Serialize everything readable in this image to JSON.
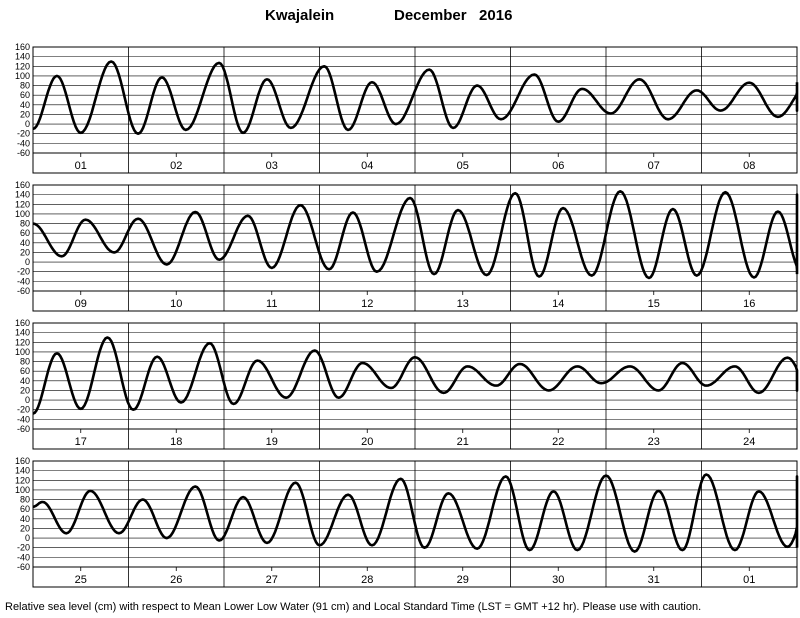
{
  "chart_data": {
    "type": "line",
    "title": "Kwajalein",
    "subtitle": "December   2016",
    "caption": "Relative sea level (cm) with respect to Mean Lower Low Water (91 cm) and Local Standard Time (LST = GMT +12 hr). Please use with caution.",
    "ylim": [
      -60,
      160
    ],
    "yticks": [
      -60,
      -40,
      -20,
      0,
      20,
      40,
      60,
      80,
      100,
      120,
      140,
      160
    ],
    "grid": true,
    "panels": [
      {
        "days": [
          "01",
          "02",
          "03",
          "04",
          "05",
          "06",
          "07",
          "08"
        ],
        "series": {
          "name": "",
          "extrema": [
            [
              0.0,
              -10
            ],
            [
              0.25,
              100
            ],
            [
              0.5,
              -18
            ],
            [
              0.82,
              130
            ],
            [
              1.1,
              -20
            ],
            [
              1.35,
              97
            ],
            [
              1.6,
              -12
            ],
            [
              1.95,
              127
            ],
            [
              2.2,
              -18
            ],
            [
              2.45,
              93
            ],
            [
              2.7,
              -8
            ],
            [
              3.05,
              120
            ],
            [
              3.3,
              -12
            ],
            [
              3.55,
              87
            ],
            [
              3.8,
              0
            ],
            [
              4.15,
              113
            ],
            [
              4.4,
              -8
            ],
            [
              4.65,
              80
            ],
            [
              4.9,
              10
            ],
            [
              5.25,
              103
            ],
            [
              5.5,
              5
            ],
            [
              5.75,
              73
            ],
            [
              6.05,
              22
            ],
            [
              6.35,
              93
            ],
            [
              6.65,
              10
            ],
            [
              6.95,
              70
            ],
            [
              7.2,
              28
            ],
            [
              7.5,
              86
            ],
            [
              7.8,
              15
            ],
            [
              8.1,
              77
            ],
            [
              8.4,
              28
            ],
            [
              8.7,
              87
            ]
          ]
        }
      },
      {
        "days": [
          "09",
          "10",
          "11",
          "12",
          "13",
          "14",
          "15",
          "16"
        ],
        "series": {
          "name": "",
          "extrema": [
            [
              0.0,
              80
            ],
            [
              0.3,
              12
            ],
            [
              0.55,
              88
            ],
            [
              0.85,
              20
            ],
            [
              1.1,
              90
            ],
            [
              1.4,
              -5
            ],
            [
              1.7,
              104
            ],
            [
              1.95,
              5
            ],
            [
              2.25,
              96
            ],
            [
              2.5,
              -12
            ],
            [
              2.8,
              118
            ],
            [
              3.1,
              -15
            ],
            [
              3.35,
              103
            ],
            [
              3.6,
              -20
            ],
            [
              3.95,
              133
            ],
            [
              4.2,
              -25
            ],
            [
              4.45,
              108
            ],
            [
              4.75,
              -27
            ],
            [
              5.05,
              143
            ],
            [
              5.3,
              -30
            ],
            [
              5.55,
              112
            ],
            [
              5.85,
              -28
            ],
            [
              6.15,
              147
            ],
            [
              6.45,
              -33
            ],
            [
              6.7,
              110
            ],
            [
              6.95,
              -28
            ],
            [
              7.25,
              145
            ],
            [
              7.55,
              -32
            ],
            [
              7.8,
              105
            ],
            [
              8.05,
              -22
            ],
            [
              8.3,
              140
            ],
            [
              8.55,
              -25
            ]
          ]
        }
      },
      {
        "days": [
          "17",
          "18",
          "19",
          "20",
          "21",
          "22",
          "23",
          "24"
        ],
        "series": {
          "name": "",
          "extrema": [
            [
              0.0,
              -28
            ],
            [
              0.25,
              97
            ],
            [
              0.5,
              -18
            ],
            [
              0.78,
              130
            ],
            [
              1.05,
              -20
            ],
            [
              1.3,
              90
            ],
            [
              1.55,
              -5
            ],
            [
              1.85,
              118
            ],
            [
              2.1,
              -8
            ],
            [
              2.35,
              82
            ],
            [
              2.65,
              5
            ],
            [
              2.95,
              103
            ],
            [
              3.2,
              5
            ],
            [
              3.45,
              77
            ],
            [
              3.75,
              25
            ],
            [
              4.0,
              89
            ],
            [
              4.3,
              15
            ],
            [
              4.55,
              70
            ],
            [
              4.85,
              30
            ],
            [
              5.1,
              75
            ],
            [
              5.4,
              20
            ],
            [
              5.7,
              70
            ],
            [
              5.95,
              35
            ],
            [
              6.25,
              70
            ],
            [
              6.55,
              20
            ],
            [
              6.8,
              77
            ],
            [
              7.05,
              30
            ],
            [
              7.35,
              70
            ],
            [
              7.6,
              15
            ],
            [
              7.9,
              88
            ],
            [
              8.15,
              20
            ],
            [
              8.4,
              60
            ]
          ]
        }
      },
      {
        "days": [
          "25",
          "26",
          "27",
          "28",
          "29",
          "30",
          "31",
          "01"
        ],
        "series": {
          "name": "",
          "extrema": [
            [
              0.0,
              65
            ],
            [
              0.1,
              75
            ],
            [
              0.35,
              10
            ],
            [
              0.6,
              98
            ],
            [
              0.9,
              10
            ],
            [
              1.15,
              80
            ],
            [
              1.4,
              0
            ],
            [
              1.7,
              107
            ],
            [
              1.95,
              -5
            ],
            [
              2.2,
              85
            ],
            [
              2.45,
              -10
            ],
            [
              2.75,
              115
            ],
            [
              3.0,
              -15
            ],
            [
              3.3,
              90
            ],
            [
              3.55,
              -15
            ],
            [
              3.85,
              123
            ],
            [
              4.1,
              -20
            ],
            [
              4.35,
              93
            ],
            [
              4.65,
              -22
            ],
            [
              4.95,
              128
            ],
            [
              5.2,
              -25
            ],
            [
              5.45,
              97
            ],
            [
              5.7,
              -25
            ],
            [
              6.0,
              130
            ],
            [
              6.3,
              -28
            ],
            [
              6.55,
              98
            ],
            [
              6.8,
              -25
            ],
            [
              7.05,
              132
            ],
            [
              7.35,
              -25
            ],
            [
              7.6,
              97
            ],
            [
              7.9,
              -18
            ],
            [
              8.2,
              128
            ],
            [
              8.45,
              -20
            ]
          ]
        }
      }
    ]
  }
}
